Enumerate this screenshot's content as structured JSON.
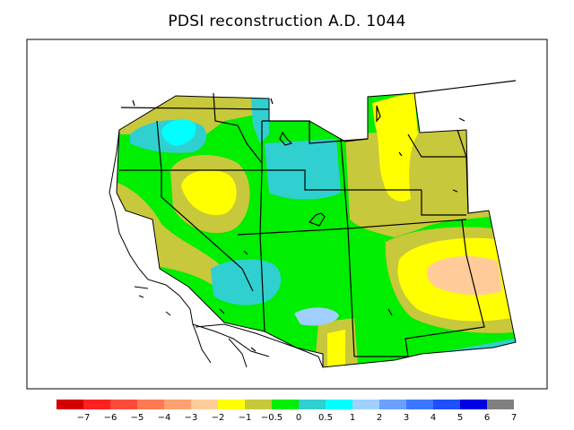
{
  "title": "PDSI reconstruction A.D. 1044",
  "colors": {
    "c_-7": "#d40000",
    "c_-6": "#ff2020",
    "c_-5": "#ff4a3a",
    "c_-4": "#ff7a50",
    "c_-3": "#ffa070",
    "c_-2": "#ffcc99",
    "c_-1": "#ffff00",
    "c_-0.5": "#c8c83c",
    "c_0": "#00ee00",
    "c_0.5": "#30d0d0",
    "c_1": "#00ffff",
    "c_2": "#a0d0ff",
    "c_3": "#6aa0ff",
    "c_4": "#3c78ff",
    "c_5": "#1e50ff",
    "c_6": "#0000e6",
    "c_7": "#808080"
  },
  "colorbar": {
    "colors": [
      "#d40000",
      "#ff2020",
      "#ff4a3a",
      "#ff7a50",
      "#ffa070",
      "#ffcc99",
      "#ffff00",
      "#c8c83c",
      "#00ee00",
      "#30d0d0",
      "#00ffff",
      "#a0d0ff",
      "#6aa0ff",
      "#3c78ff",
      "#1e50ff",
      "#0000e6",
      "#808080"
    ],
    "labels": [
      "−7",
      "−6",
      "−5",
      "−4",
      "−3",
      "−2",
      "−1",
      "−0.5",
      "0",
      "0.5",
      "1",
      "2",
      "3",
      "4",
      "5",
      "6",
      "7"
    ]
  }
}
